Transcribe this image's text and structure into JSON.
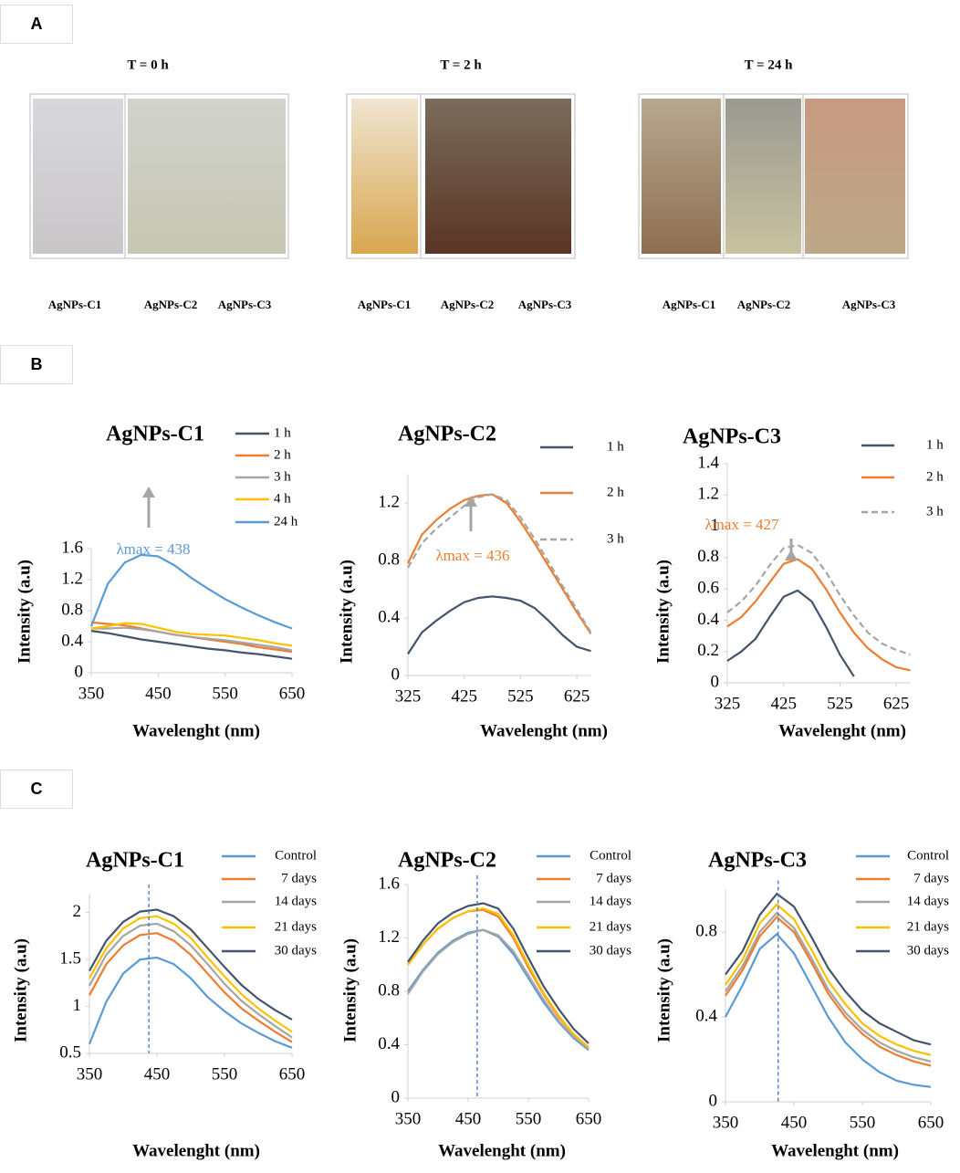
{
  "panels": {
    "A": {
      "label": "A",
      "groups": [
        {
          "title": "T = 0 h",
          "samples": [
            "AgNPs-C1",
            "AgNPs-C2",
            "AgNPs-C3"
          ]
        },
        {
          "title": "T = 2 h",
          "samples": [
            "AgNPs-C1",
            "AgNPs-C2",
            "AgNPs-C3"
          ]
        },
        {
          "title": "T = 24 h",
          "samples": [
            "AgNPs-C1",
            "AgNPs-C2",
            "AgNPs-C3"
          ]
        }
      ]
    },
    "B": {
      "label": "B"
    },
    "C": {
      "label": "C"
    }
  },
  "chart_data": [
    {
      "type": "line",
      "title": "AgNPs-C1",
      "xlabel": "Wavelenght (nm)",
      "ylabel": "Intensity (a.u)",
      "x": [
        350,
        375,
        400,
        425,
        450,
        475,
        500,
        525,
        550,
        575,
        600,
        625,
        650
      ],
      "xlim": [
        350,
        650
      ],
      "xticks": [
        350,
        450,
        550,
        650
      ],
      "ylim": [
        0,
        1.6
      ],
      "yticks": [
        0,
        0.4,
        0.8,
        1.2,
        1.6
      ],
      "annotation": {
        "text": "λmax = 438",
        "color": "#5b9bd5"
      },
      "series": [
        {
          "name": "1 h",
          "color": "#44546a",
          "values": [
            0.54,
            0.51,
            0.47,
            0.43,
            0.4,
            0.37,
            0.34,
            0.31,
            0.29,
            0.26,
            0.24,
            0.21,
            0.18
          ]
        },
        {
          "name": "2 h",
          "color": "#ed7d31",
          "values": [
            0.65,
            0.63,
            0.61,
            0.57,
            0.53,
            0.49,
            0.46,
            0.43,
            0.4,
            0.37,
            0.33,
            0.3,
            0.27
          ]
        },
        {
          "name": "3 h",
          "color": "#a5a5a5",
          "values": [
            0.57,
            0.57,
            0.58,
            0.56,
            0.53,
            0.49,
            0.46,
            0.44,
            0.42,
            0.39,
            0.36,
            0.33,
            0.29
          ]
        },
        {
          "name": "4 h",
          "color": "#ffc000",
          "values": [
            0.57,
            0.6,
            0.64,
            0.63,
            0.58,
            0.53,
            0.5,
            0.49,
            0.48,
            0.45,
            0.42,
            0.38,
            0.35
          ]
        },
        {
          "name": "24 h",
          "color": "#5b9bd5",
          "values": [
            0.6,
            1.15,
            1.42,
            1.52,
            1.5,
            1.38,
            1.22,
            1.08,
            0.95,
            0.84,
            0.74,
            0.65,
            0.57
          ]
        }
      ]
    },
    {
      "type": "line",
      "title": "AgNPs-C2",
      "xlabel": "Wavelenght (nm)",
      "ylabel": "Intensity (a.u)",
      "x": [
        325,
        350,
        375,
        400,
        425,
        450,
        475,
        500,
        525,
        550,
        575,
        600,
        625,
        650
      ],
      "xlim": [
        325,
        650
      ],
      "xticks": [
        325,
        425,
        525,
        625
      ],
      "ylim": [
        0,
        1.4
      ],
      "yticks": [
        0,
        0.4,
        0.8,
        1.2
      ],
      "annotation": {
        "text": "λmax = 436",
        "color": "#ed7d31"
      },
      "series": [
        {
          "name": "1 h",
          "color": "#44546a",
          "values": [
            0.15,
            0.3,
            0.38,
            0.45,
            0.51,
            0.54,
            0.55,
            0.54,
            0.52,
            0.47,
            0.38,
            0.28,
            0.2,
            0.17
          ]
        },
        {
          "name": "2 h",
          "color": "#ed7d31",
          "values": [
            0.78,
            0.98,
            1.08,
            1.16,
            1.22,
            1.25,
            1.26,
            1.2,
            1.07,
            0.92,
            0.76,
            0.6,
            0.44,
            0.29
          ]
        },
        {
          "name": "3 h",
          "color": "#a5a5a5",
          "dash": true,
          "values": [
            0.75,
            0.92,
            1.02,
            1.1,
            1.18,
            1.24,
            1.26,
            1.22,
            1.1,
            0.95,
            0.79,
            0.62,
            0.46,
            0.3
          ]
        }
      ]
    },
    {
      "type": "line",
      "title": "AgNPs-C3",
      "xlabel": "Wavelenght (nm)",
      "ylabel": "Intensity (a.u)",
      "x": [
        325,
        350,
        375,
        400,
        425,
        450,
        475,
        500,
        525,
        550,
        575,
        600,
        625,
        650
      ],
      "xlim": [
        325,
        650
      ],
      "xticks": [
        325,
        425,
        525,
        625
      ],
      "ylim": [
        0,
        1.4
      ],
      "yticks": [
        0,
        0.2,
        0.4,
        0.6,
        0.8,
        1,
        1.2,
        1.4
      ],
      "annotation": {
        "text": "λmax = 427",
        "color": "#ed7d31"
      },
      "series": [
        {
          "name": "1 h",
          "color": "#44546a",
          "values": [
            0.14,
            0.2,
            0.28,
            0.42,
            0.55,
            0.59,
            0.52,
            0.36,
            0.18,
            0.04,
            null,
            null,
            null,
            null
          ]
        },
        {
          "name": "2 h",
          "color": "#ed7d31",
          "values": [
            0.36,
            0.42,
            0.52,
            0.64,
            0.76,
            0.79,
            0.73,
            0.6,
            0.45,
            0.32,
            0.22,
            0.15,
            0.1,
            0.08
          ]
        },
        {
          "name": "3 h",
          "color": "#a5a5a5",
          "dash": true,
          "values": [
            0.45,
            0.52,
            0.62,
            0.75,
            0.86,
            0.88,
            0.83,
            0.71,
            0.56,
            0.43,
            0.32,
            0.25,
            0.21,
            0.18
          ]
        }
      ]
    },
    {
      "type": "line",
      "title": "AgNPs-C1",
      "xlabel": "Wavelenght (nm)",
      "ylabel": "Intensity (a.u)",
      "x": [
        350,
        375,
        400,
        425,
        450,
        475,
        500,
        525,
        550,
        575,
        600,
        625,
        650
      ],
      "xlim": [
        350,
        650
      ],
      "xticks": [
        350,
        450,
        550,
        650
      ],
      "ylim": [
        0.5,
        2.2
      ],
      "yticks": [
        0.5,
        1,
        1.5,
        2
      ],
      "reference_x": 438,
      "series": [
        {
          "name": "Control",
          "color": "#5b9bd5",
          "values": [
            0.6,
            1.05,
            1.35,
            1.5,
            1.52,
            1.45,
            1.3,
            1.1,
            0.95,
            0.82,
            0.72,
            0.63,
            0.56
          ]
        },
        {
          "name": "7 days",
          "color": "#ed7d31",
          "values": [
            1.12,
            1.45,
            1.65,
            1.76,
            1.78,
            1.7,
            1.55,
            1.35,
            1.15,
            0.98,
            0.85,
            0.73,
            0.62
          ]
        },
        {
          "name": "14 days",
          "color": "#a5a5a5",
          "values": [
            1.22,
            1.55,
            1.75,
            1.86,
            1.88,
            1.8,
            1.65,
            1.45,
            1.24,
            1.06,
            0.92,
            0.79,
            0.67
          ]
        },
        {
          "name": "21 days",
          "color": "#ffc000",
          "values": [
            1.3,
            1.62,
            1.83,
            1.94,
            1.96,
            1.88,
            1.73,
            1.52,
            1.32,
            1.13,
            0.98,
            0.85,
            0.73
          ]
        },
        {
          "name": "30 days",
          "color": "#44546a",
          "values": [
            1.38,
            1.7,
            1.9,
            2.01,
            2.03,
            1.96,
            1.82,
            1.62,
            1.42,
            1.23,
            1.08,
            0.96,
            0.86
          ]
        }
      ]
    },
    {
      "type": "line",
      "title": "AgNPs-C2",
      "xlabel": "Wavelenght (nm)",
      "ylabel": "Intensity (a.u)",
      "x": [
        350,
        375,
        400,
        425,
        450,
        475,
        500,
        525,
        550,
        575,
        600,
        625,
        650
      ],
      "xlim": [
        350,
        650
      ],
      "xticks": [
        350,
        450,
        550,
        650
      ],
      "ylim": [
        0,
        1.6
      ],
      "yticks": [
        0,
        0.4,
        0.8,
        1.2,
        1.6
      ],
      "reference_x": 465,
      "series": [
        {
          "name": "Control",
          "color": "#5b9bd5",
          "values": [
            0.8,
            0.96,
            1.09,
            1.18,
            1.24,
            1.26,
            1.21,
            1.08,
            0.9,
            0.72,
            0.57,
            0.45,
            0.36
          ]
        },
        {
          "name": "7 days",
          "color": "#ed7d31",
          "values": [
            1.0,
            1.15,
            1.27,
            1.35,
            1.4,
            1.41,
            1.36,
            1.2,
            0.98,
            0.78,
            0.61,
            0.48,
            0.38
          ]
        },
        {
          "name": "14 days",
          "color": "#a5a5a5",
          "values": [
            0.78,
            0.95,
            1.08,
            1.17,
            1.23,
            1.26,
            1.22,
            1.1,
            0.92,
            0.74,
            0.58,
            0.46,
            0.37
          ]
        },
        {
          "name": "21 days",
          "color": "#ffc000",
          "values": [
            1.0,
            1.15,
            1.27,
            1.35,
            1.4,
            1.42,
            1.38,
            1.22,
            1.0,
            0.79,
            0.62,
            0.48,
            0.38
          ]
        },
        {
          "name": "30 days",
          "color": "#44546a",
          "values": [
            1.02,
            1.18,
            1.31,
            1.39,
            1.44,
            1.46,
            1.42,
            1.27,
            1.05,
            0.84,
            0.67,
            0.52,
            0.41
          ]
        }
      ]
    },
    {
      "type": "line",
      "title": "AgNPs-C3",
      "xlabel": "Wavelenght (nm)",
      "ylabel": "Intensity (a.u)",
      "x": [
        350,
        375,
        400,
        425,
        450,
        475,
        500,
        525,
        550,
        575,
        600,
        625,
        650
      ],
      "xlim": [
        350,
        650
      ],
      "xticks": [
        350,
        450,
        550,
        650
      ],
      "ylim": [
        0,
        1
      ],
      "yticks": [
        0,
        0.4,
        0.8
      ],
      "reference_x": 427,
      "series": [
        {
          "name": "Control",
          "color": "#5b9bd5",
          "values": [
            0.4,
            0.55,
            0.72,
            0.79,
            0.7,
            0.55,
            0.4,
            0.28,
            0.2,
            0.14,
            0.1,
            0.08,
            0.07
          ]
        },
        {
          "name": "7 days",
          "color": "#ed7d31",
          "values": [
            0.5,
            0.62,
            0.78,
            0.87,
            0.8,
            0.66,
            0.51,
            0.4,
            0.32,
            0.26,
            0.22,
            0.19,
            0.17
          ]
        },
        {
          "name": "14 days",
          "color": "#a5a5a5",
          "values": [
            0.52,
            0.64,
            0.8,
            0.89,
            0.82,
            0.68,
            0.53,
            0.42,
            0.34,
            0.28,
            0.24,
            0.21,
            0.19
          ]
        },
        {
          "name": "21 days",
          "color": "#ffc000",
          "values": [
            0.55,
            0.67,
            0.84,
            0.93,
            0.86,
            0.72,
            0.57,
            0.46,
            0.37,
            0.31,
            0.27,
            0.24,
            0.22
          ]
        },
        {
          "name": "30 days",
          "color": "#44546a",
          "values": [
            0.6,
            0.71,
            0.88,
            0.98,
            0.92,
            0.78,
            0.63,
            0.52,
            0.43,
            0.37,
            0.33,
            0.29,
            0.27
          ]
        }
      ]
    }
  ]
}
